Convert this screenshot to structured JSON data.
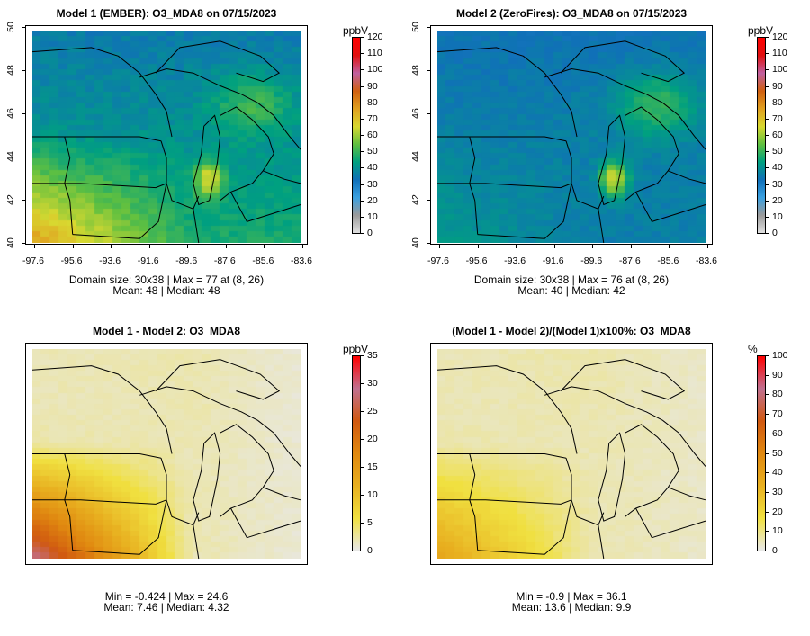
{
  "panels": [
    {
      "id": "p1",
      "title": "Model 1 (EMBER): O3_MDA8 on 07/15/2023",
      "colorbar": {
        "unit": "ppbV",
        "ticks": [
          "120",
          "110",
          "100",
          "90",
          "80",
          "70",
          "60",
          "50",
          "40",
          "30",
          "20",
          "10",
          "0"
        ],
        "max": 120,
        "scale": "full"
      },
      "y_ticks": [
        "50",
        "48",
        "46",
        "44",
        "42",
        "40"
      ],
      "x_ticks": [
        "-97.6",
        "-95.6",
        "-93.6",
        "-91.6",
        "-89.6",
        "-87.6",
        "-85.6",
        "-83.6"
      ],
      "stats": [
        "Domain size: 30x38 | Max = 77 at (8, 26)",
        "Mean: 48 |  Median: 48"
      ],
      "field": "model1"
    },
    {
      "id": "p2",
      "title": "Model 2 (ZeroFires): O3_MDA8 on 07/15/2023",
      "colorbar": {
        "unit": "ppbV",
        "ticks": [
          "120",
          "110",
          "100",
          "90",
          "80",
          "70",
          "60",
          "50",
          "40",
          "30",
          "20",
          "10",
          "0"
        ],
        "max": 120,
        "scale": "full"
      },
      "y_ticks": [
        "50",
        "48",
        "46",
        "44",
        "42",
        "40"
      ],
      "x_ticks": [
        "-97.6",
        "-95.6",
        "-93.6",
        "-91.6",
        "-89.6",
        "-87.6",
        "-85.6",
        "-83.6"
      ],
      "stats": [
        "Domain size: 30x38 | Max = 76 at (8, 26)",
        "Mean: 40 |  Median: 42"
      ],
      "field": "model2"
    },
    {
      "id": "p3",
      "title": "Model 1 - Model 2: O3_MDA8",
      "colorbar": {
        "unit": "ppbV",
        "ticks": [
          "35",
          "30",
          "25",
          "20",
          "15",
          "10",
          "5",
          "0"
        ],
        "max": 35,
        "scale": "diff"
      },
      "y_ticks": [],
      "x_ticks": [],
      "stats": [
        "Min = -0.424 | Max = 24.6",
        "Mean: 7.46 |  Median: 4.32"
      ],
      "field": "diff"
    },
    {
      "id": "p4",
      "title": "(Model 1 - Model 2)/(Model 1)x100%: O3_MDA8",
      "colorbar": {
        "unit": "%",
        "ticks": [
          "100",
          "90",
          "80",
          "70",
          "60",
          "50",
          "40",
          "30",
          "20",
          "10",
          "0"
        ],
        "max": 100,
        "scale": "diff"
      },
      "y_ticks": [],
      "x_ticks": [],
      "stats": [
        "Min = -0.9 | Max = 36.1",
        "Mean: 13.6 |  Median: 9.9"
      ],
      "field": "pct"
    }
  ],
  "colors": {
    "full_scale": [
      "#e0e0e0",
      "#9a9a9a",
      "#3aa0e0",
      "#1070b8",
      "#00a080",
      "#60c040",
      "#d8d830",
      "#e0a020",
      "#d06010",
      "#c060a0",
      "#e01010",
      "#ff0000"
    ],
    "diff_scale": [
      "#e8e8e8",
      "#f0e040",
      "#e8b020",
      "#e08810",
      "#d05810",
      "#c07090",
      "#ff0000"
    ]
  }
}
